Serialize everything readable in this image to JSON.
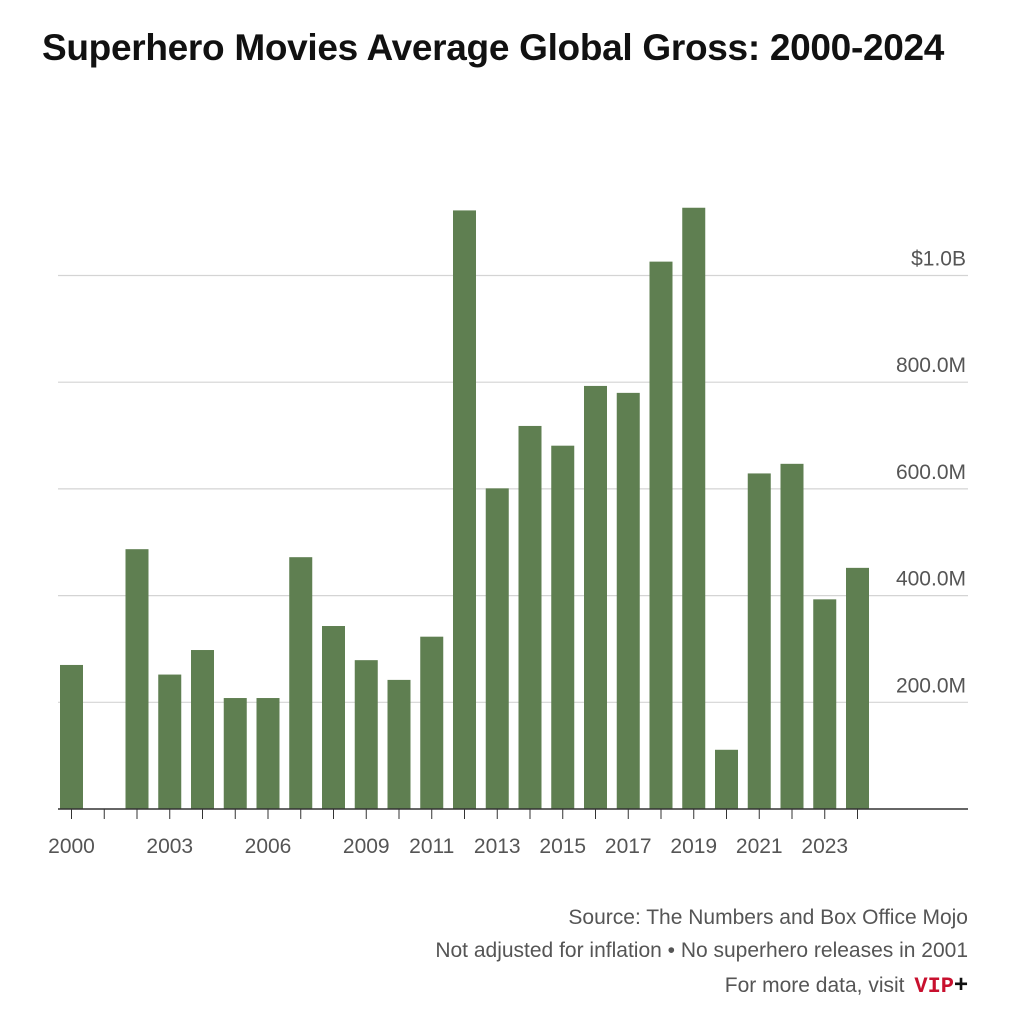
{
  "title": "Superhero Movies Average Global Gross: 2000-2024",
  "footer": {
    "source": "Source: The Numbers and Box Office Mojo",
    "note": "Not adjusted for inflation • No superhero releases in 2001",
    "more": "For more data, visit",
    "brand": "VIP",
    "brand_plus": "+"
  },
  "colors": {
    "bar": "#5f7f51",
    "grid": "#d4d4d4",
    "axis": "#333333",
    "text": "#555555"
  },
  "chart_data": {
    "type": "bar",
    "categories": [
      "2000",
      "2001",
      "2002",
      "2003",
      "2004",
      "2005",
      "2006",
      "2007",
      "2008",
      "2009",
      "2010",
      "2011",
      "2012",
      "2013",
      "2014",
      "2015",
      "2016",
      "2017",
      "2018",
      "2019",
      "2020",
      "2021",
      "2022",
      "2023",
      "2024"
    ],
    "values": [
      270,
      0,
      487,
      252,
      298,
      208,
      208,
      472,
      343,
      279,
      242,
      323,
      1122,
      601,
      718,
      681,
      793,
      780,
      1026,
      1127,
      111,
      629,
      647,
      393,
      452
    ],
    "x_tick_labels": [
      "2000",
      "2003",
      "2006",
      "2009",
      "2011",
      "2013",
      "2015",
      "2017",
      "2019",
      "2021",
      "2023"
    ],
    "y_ticks": [
      200,
      400,
      600,
      800,
      1000
    ],
    "y_tick_labels": [
      "200.0M",
      "400.0M",
      "600.0M",
      "800.0M",
      "$1.0B"
    ],
    "ylim": [
      0,
      1130
    ],
    "units": "millions USD",
    "grid": true
  }
}
